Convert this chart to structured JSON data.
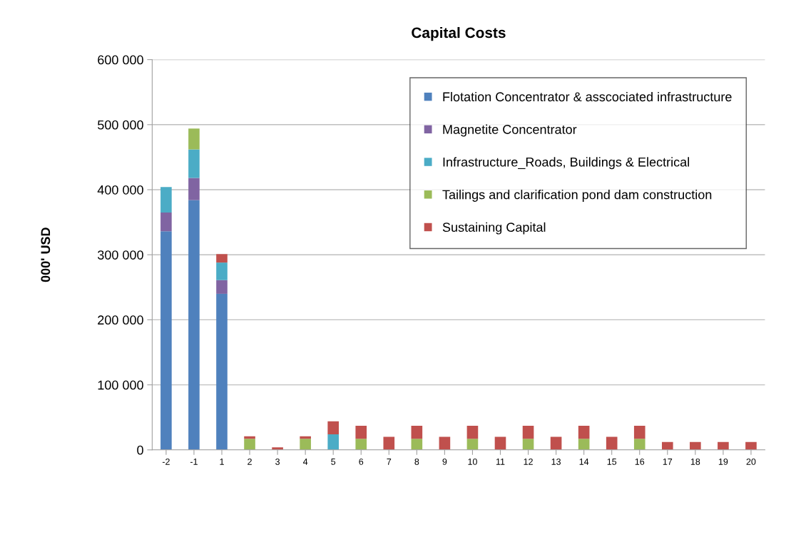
{
  "chart_data": {
    "type": "bar",
    "title": "Capital Costs",
    "ylabel": "000' USD",
    "stacked": true,
    "categories": [
      "-2",
      "-1",
      "1",
      "2",
      "3",
      "4",
      "5",
      "6",
      "7",
      "8",
      "9",
      "10",
      "11",
      "12",
      "13",
      "14",
      "15",
      "16",
      "17",
      "18",
      "19",
      "20"
    ],
    "series": [
      {
        "name": "Flotation Concentrator & asscociated infrastructure",
        "color": "#4f81bd",
        "values": [
          336000,
          384000,
          240000,
          0,
          0,
          0,
          0,
          0,
          0,
          0,
          0,
          0,
          0,
          0,
          0,
          0,
          0,
          0,
          0,
          0,
          0,
          0
        ]
      },
      {
        "name": "Magnetite Concentrator",
        "color": "#8064a2",
        "values": [
          29000,
          34000,
          21000,
          0,
          0,
          0,
          0,
          0,
          0,
          0,
          0,
          0,
          0,
          0,
          0,
          0,
          0,
          0,
          0,
          0,
          0,
          0
        ]
      },
      {
        "name": "Infrastructure_Roads, Buildings & Electrical",
        "color": "#4bacc6",
        "values": [
          39000,
          44000,
          27000,
          0,
          0,
          0,
          24000,
          0,
          0,
          0,
          0,
          0,
          0,
          0,
          0,
          0,
          0,
          0,
          0,
          0,
          0,
          0
        ]
      },
      {
        "name": "Tailings and clarification pond dam construction",
        "color": "#9bbb59",
        "values": [
          0,
          32000,
          0,
          17000,
          0,
          17000,
          0,
          17000,
          0,
          17000,
          0,
          17000,
          0,
          17000,
          0,
          17000,
          0,
          17000,
          0,
          0,
          0,
          0
        ]
      },
      {
        "name": "Sustaining Capital",
        "color": "#c0504d",
        "values": [
          0,
          0,
          13000,
          4000,
          4000,
          4000,
          20000,
          20000,
          20000,
          20000,
          20000,
          20000,
          20000,
          20000,
          20000,
          20000,
          20000,
          20000,
          12000,
          12000,
          12000,
          12000
        ]
      }
    ],
    "ylim": [
      0,
      600000
    ],
    "yticks": [
      {
        "value": 0,
        "label": "0"
      },
      {
        "value": 100000,
        "label": "100 000"
      },
      {
        "value": 200000,
        "label": "200 000"
      },
      {
        "value": 300000,
        "label": "300 000"
      },
      {
        "value": 400000,
        "label": "400 000"
      },
      {
        "value": 500000,
        "label": "500 000"
      },
      {
        "value": 600000,
        "label": "600 000"
      }
    ],
    "grid": "y",
    "legend": "top right"
  }
}
